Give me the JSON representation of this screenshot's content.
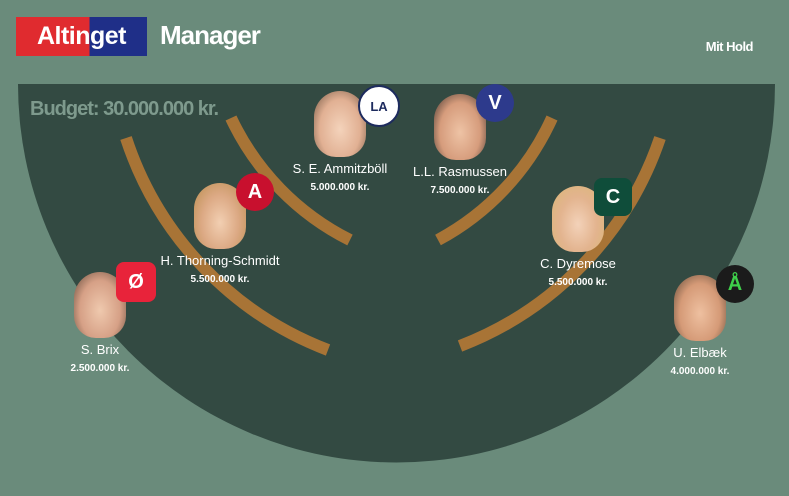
{
  "header": {
    "logo_text": "Altinget",
    "app_title": "Manager",
    "nav_link": "Mit Hold"
  },
  "budget_label": "Budget: 30.000.000 kr.",
  "colors": {
    "background": "#6a8b7b",
    "arena": "#334a42",
    "bench": "#a87436",
    "logo_red": "#e02b2f",
    "logo_blue": "#1f2f88"
  },
  "members": [
    {
      "name": "S. Brix",
      "price": "2.500.000 kr.",
      "party_letter": "Ø",
      "badge_color": "#e8233a"
    },
    {
      "name": "H. Thorning-Schmidt",
      "price": "5.500.000 kr.",
      "party_letter": "A",
      "badge_color": "#c8102e"
    },
    {
      "name": "S. E. Ammitzböll",
      "price": "5.000.000 kr.",
      "party_letter": "LA",
      "badge_color": "#ffffff"
    },
    {
      "name": "L.L. Rasmussen",
      "price": "7.500.000 kr.",
      "party_letter": "V",
      "badge_color": "#2d3a8c"
    },
    {
      "name": "C. Dyremose",
      "price": "5.500.000 kr.",
      "party_letter": "C",
      "badge_color": "#0f4d3a"
    },
    {
      "name": "U. Elbæk",
      "price": "4.000.000 kr.",
      "party_letter": "Å",
      "badge_color": "#1b1b1b"
    }
  ]
}
